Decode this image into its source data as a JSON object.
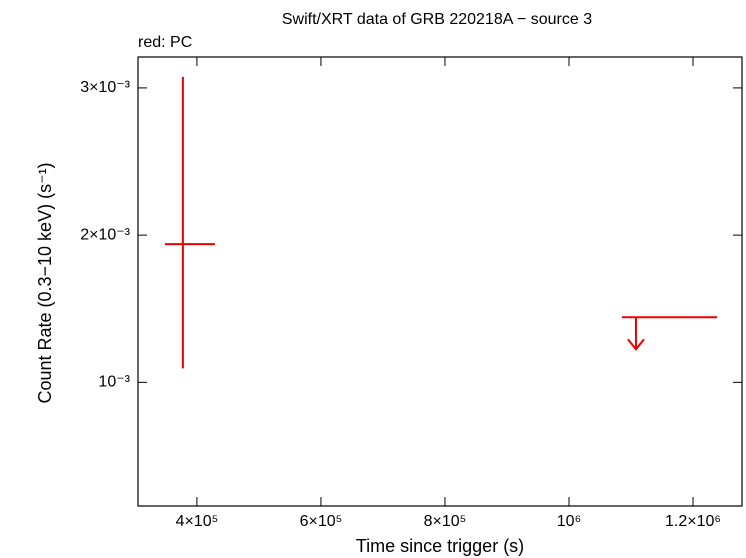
{
  "chart_data": {
    "type": "scatter",
    "title": "Swift/XRT data of GRB 220218A − source 3",
    "subtitle": "red: PC",
    "x_label": "Time since trigger (s)",
    "y_label": "Count Rate (0.3−10 keV) (s⁻¹)",
    "xlim": [
      305000,
      1279000
    ],
    "ylim": [
      0.00016,
      0.00321
    ],
    "xticks": [
      {
        "value": 400000,
        "label": "4×10⁵"
      },
      {
        "value": 600000,
        "label": "6×10⁵"
      },
      {
        "value": 800000,
        "label": "8×10⁵"
      },
      {
        "value": 1000000,
        "label": "10⁶"
      },
      {
        "value": 1200000,
        "label": "1.2×10⁶"
      }
    ],
    "yticks": [
      {
        "value": 0.001,
        "label": "10⁻³"
      },
      {
        "value": 0.002,
        "label": "2×10⁻³"
      },
      {
        "value": 0.003,
        "label": "3×10⁻³"
      }
    ],
    "series": [
      {
        "color": "#ee0000",
        "x": [
          377400
        ],
        "values": [
          0.001939
        ],
        "xerr_minus": [
          29000
        ],
        "xerr_plus": [
          51600
        ],
        "yerr_minus": [
          0.000844
        ],
        "yerr_plus": [
          0.001136
        ]
      },
      {
        "color": "#ee0000",
        "upper_limit": true,
        "x": [
          1108000
        ],
        "values": [
          0.001442
        ],
        "xerr_minus": [
          22500
        ],
        "xerr_plus": [
          130700
        ]
      }
    ]
  }
}
